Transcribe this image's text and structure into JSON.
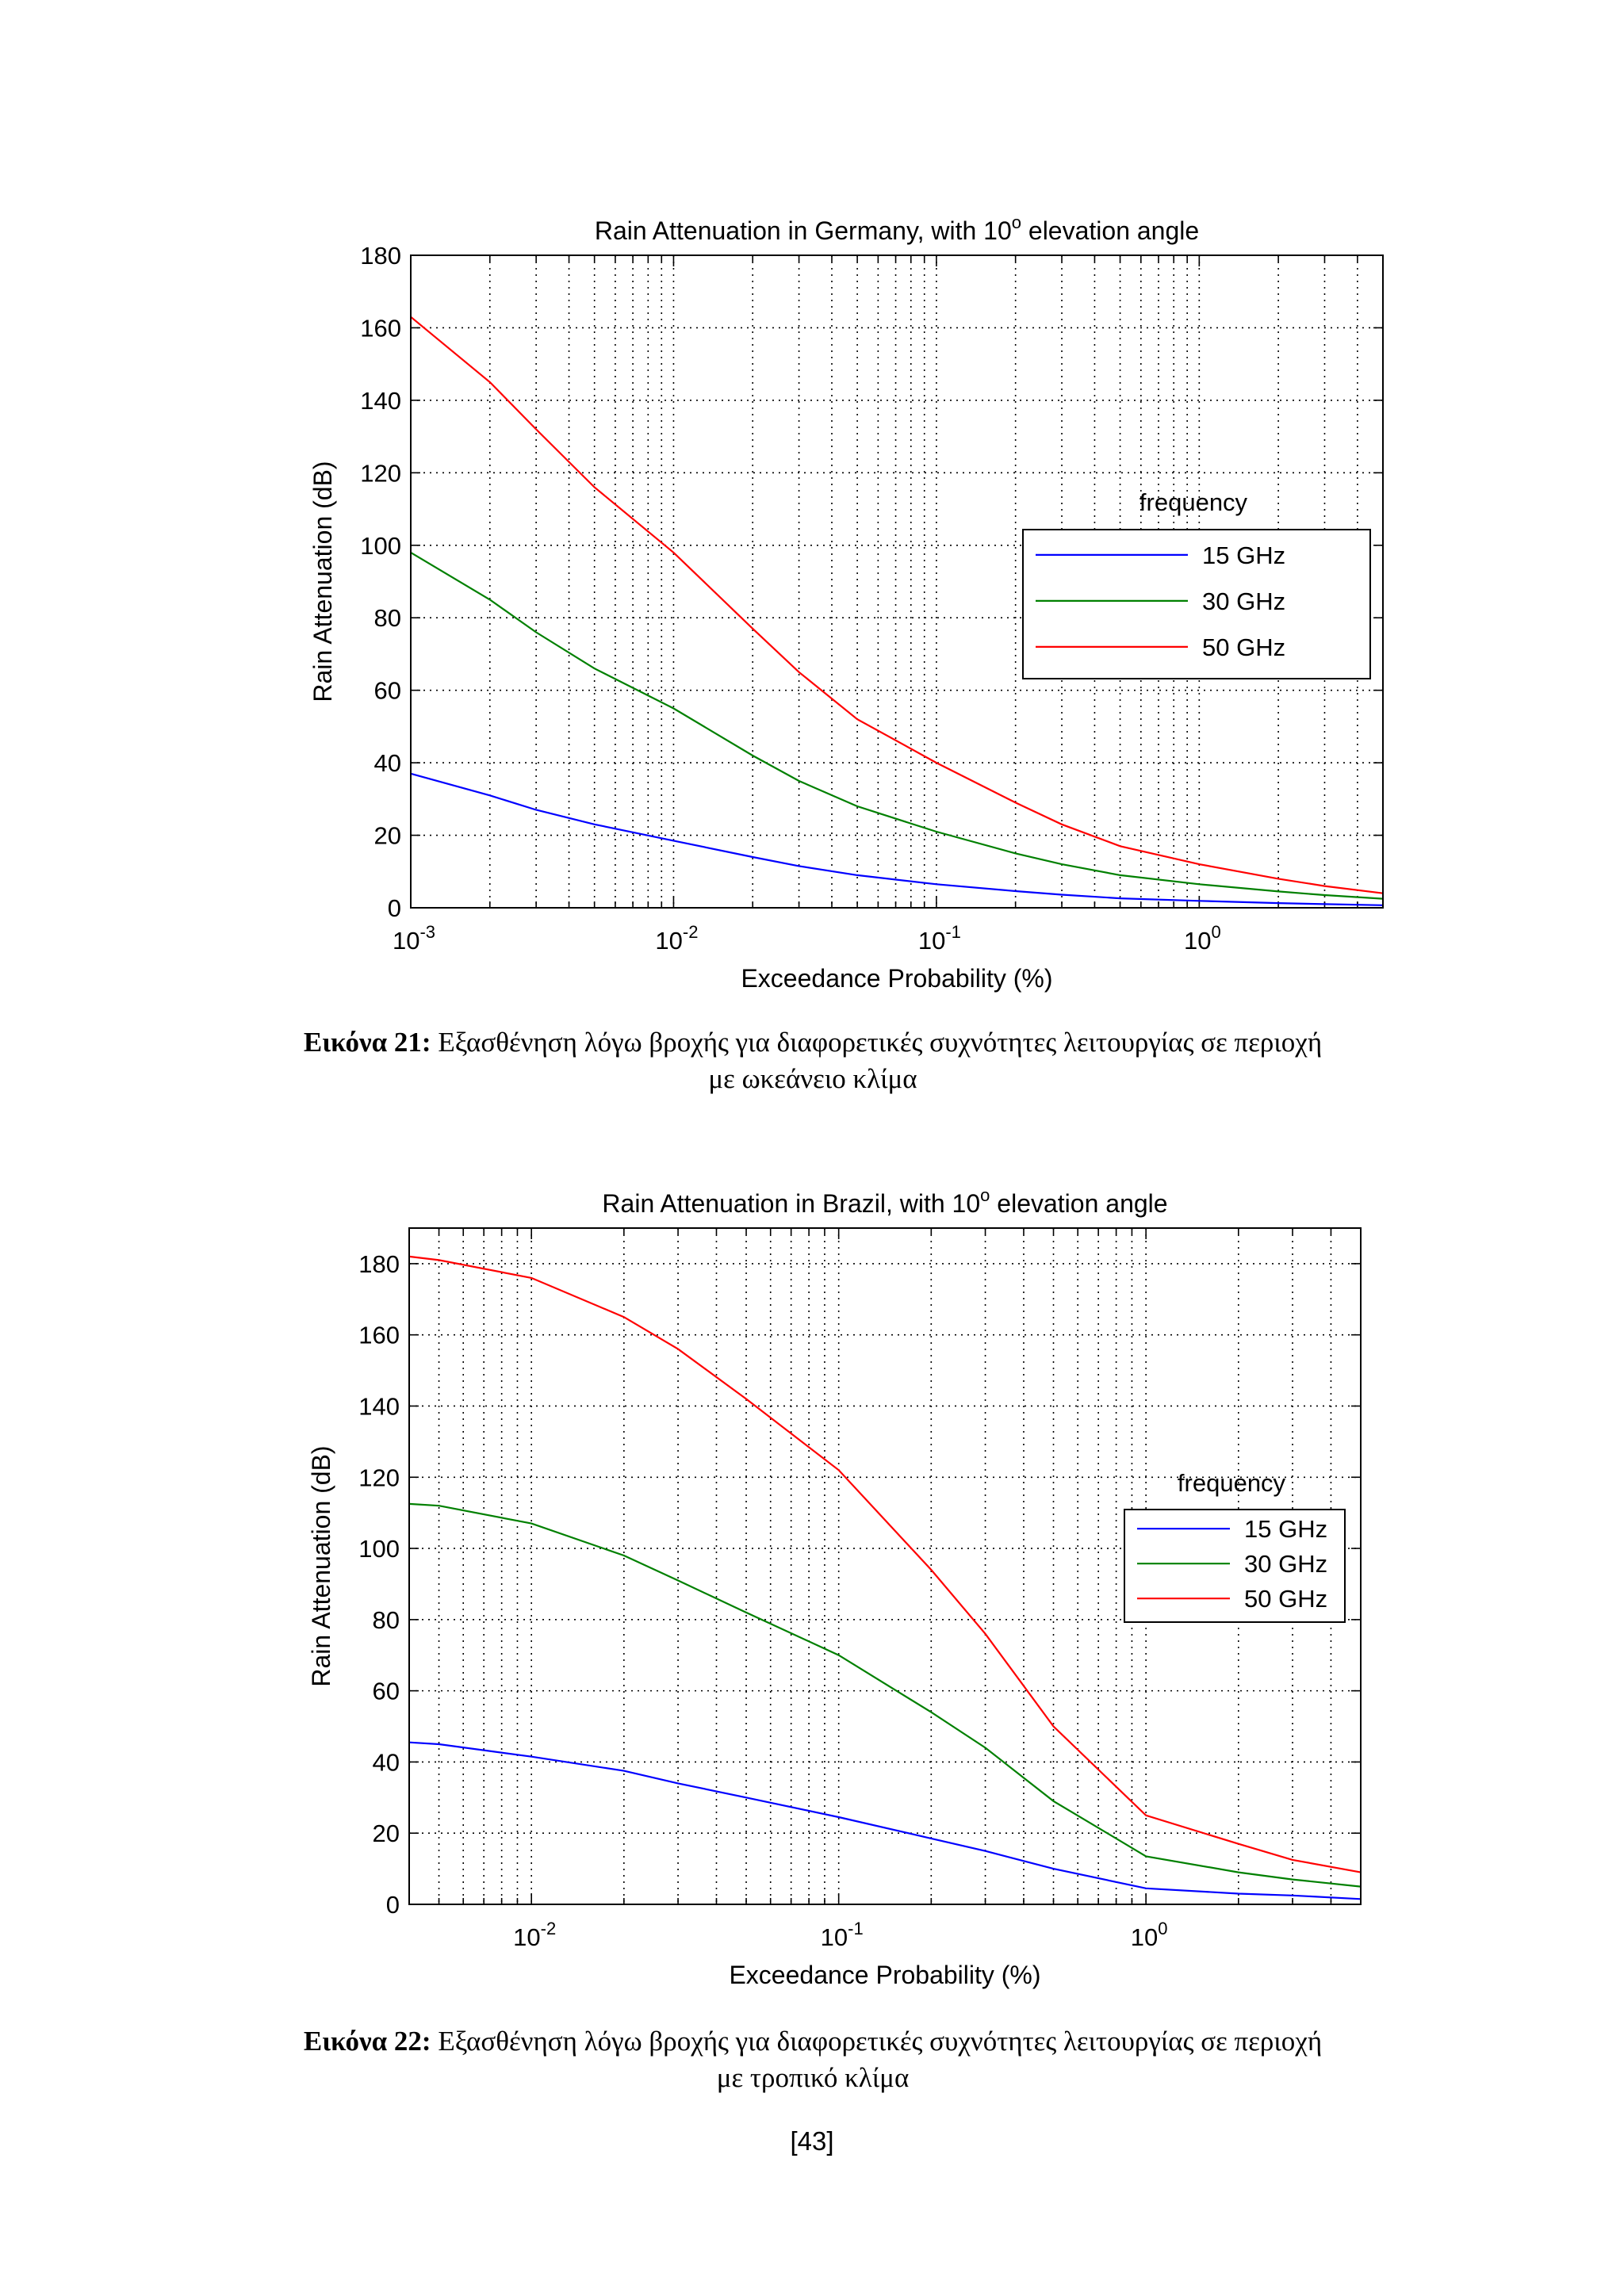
{
  "chart_data": [
    {
      "type": "line",
      "title": "Rain Attenuation in Germany, with 10° elevation angle",
      "title_main": "Rain Attenuation in Germany, with 10",
      "title_sup": "o",
      "title_tail": " elevation angle",
      "xlabel": "Exceedance Probability (%)",
      "ylabel": "Rain Attenuation (dB)",
      "xscale": "log",
      "xlim": [
        0.001,
        5
      ],
      "ylim": [
        0,
        180
      ],
      "yticks": [
        0,
        20,
        40,
        60,
        80,
        100,
        120,
        140,
        160,
        180
      ],
      "xticks": [
        {
          "value": 0.001,
          "base": "10",
          "exp": "-3"
        },
        {
          "value": 0.01,
          "base": "10",
          "exp": "-2"
        },
        {
          "value": 0.1,
          "base": "10",
          "exp": "-1"
        },
        {
          "value": 1,
          "base": "10",
          "exp": "0"
        }
      ],
      "grid": true,
      "legend_title": "frequency",
      "legend_position": "right",
      "series": [
        {
          "name": "15 GHz",
          "color": "#0000ff",
          "x": [
            0.001,
            0.002,
            0.003,
            0.005,
            0.01,
            0.02,
            0.03,
            0.05,
            0.1,
            0.2,
            0.3,
            0.5,
            1,
            2,
            3,
            5
          ],
          "values": [
            37,
            31,
            27,
            23,
            18.5,
            14,
            11.5,
            9,
            6.5,
            4.6,
            3.6,
            2.6,
            1.9,
            1.3,
            1.0,
            0.7
          ]
        },
        {
          "name": "30 GHz",
          "color": "#008000",
          "x": [
            0.001,
            0.002,
            0.003,
            0.005,
            0.01,
            0.02,
            0.03,
            0.05,
            0.1,
            0.2,
            0.3,
            0.5,
            1,
            2,
            3,
            5
          ],
          "values": [
            98,
            85,
            76,
            66,
            55,
            42,
            35,
            28,
            21,
            15,
            12,
            9,
            6.5,
            4.5,
            3.5,
            2.5
          ]
        },
        {
          "name": "50 GHz",
          "color": "#ff0000",
          "x": [
            0.001,
            0.002,
            0.003,
            0.005,
            0.01,
            0.02,
            0.03,
            0.05,
            0.1,
            0.2,
            0.3,
            0.5,
            1,
            2,
            3,
            5
          ],
          "values": [
            163,
            145,
            132,
            116,
            98,
            77,
            65,
            52,
            40,
            29,
            23,
            17,
            12,
            8,
            6,
            4
          ]
        }
      ]
    },
    {
      "type": "line",
      "title": "Rain Attenuation in Brazil, with 10° elevation angle",
      "title_main": "Rain Attenuation in Brazil, with 10",
      "title_sup": "o",
      "title_tail": " elevation angle",
      "xlabel": "Exceedance Probability (%)",
      "ylabel": "Rain Attenuation (dB)",
      "xscale": "log",
      "xlim": [
        0.004,
        5
      ],
      "ylim": [
        0,
        190
      ],
      "yticks": [
        0,
        20,
        40,
        60,
        80,
        100,
        120,
        140,
        160,
        180
      ],
      "xticks": [
        {
          "value": 0.01,
          "base": "10",
          "exp": "-2"
        },
        {
          "value": 0.1,
          "base": "10",
          "exp": "-1"
        },
        {
          "value": 1,
          "base": "10",
          "exp": "0"
        }
      ],
      "grid": true,
      "legend_title": "frequency",
      "legend_position": "right",
      "series": [
        {
          "name": "15 GHz",
          "color": "#0000ff",
          "x": [
            0.004,
            0.005,
            0.01,
            0.02,
            0.03,
            0.05,
            0.1,
            0.2,
            0.3,
            0.5,
            1,
            2,
            3,
            5
          ],
          "values": [
            45.5,
            45,
            41.5,
            37.5,
            34,
            30,
            24.5,
            18.5,
            15,
            10,
            4.5,
            3,
            2.5,
            1.5
          ]
        },
        {
          "name": "30 GHz",
          "color": "#008000",
          "x": [
            0.004,
            0.005,
            0.01,
            0.02,
            0.03,
            0.05,
            0.1,
            0.2,
            0.3,
            0.5,
            1,
            2,
            3,
            5
          ],
          "values": [
            112.5,
            112,
            107,
            98,
            91,
            82,
            70,
            54,
            44,
            29,
            13.5,
            9,
            7,
            5
          ]
        },
        {
          "name": "50 GHz",
          "color": "#ff0000",
          "x": [
            0.004,
            0.005,
            0.01,
            0.02,
            0.03,
            0.05,
            0.1,
            0.2,
            0.3,
            0.5,
            1,
            2,
            3,
            5
          ],
          "values": [
            182,
            181,
            176,
            165,
            156,
            142,
            122,
            94,
            76,
            50,
            25,
            17,
            12.5,
            9
          ]
        }
      ]
    }
  ],
  "captions": [
    {
      "label": "Εικόνα 21:",
      "line1": "Εξασθένηση λόγω βροχής  για διαφορετικές συχνότητες λειτουργίας σε περιοχή",
      "line2": "με ωκεάνειο κλίμα"
    },
    {
      "label": "Εικόνα 22:",
      "line1": "Εξασθένηση λόγω βροχής  για διαφορετικές συχνότητες λειτουργίας σε περιοχή",
      "line2": "με τροπικό κλίμα"
    }
  ],
  "page_number": "[43]"
}
